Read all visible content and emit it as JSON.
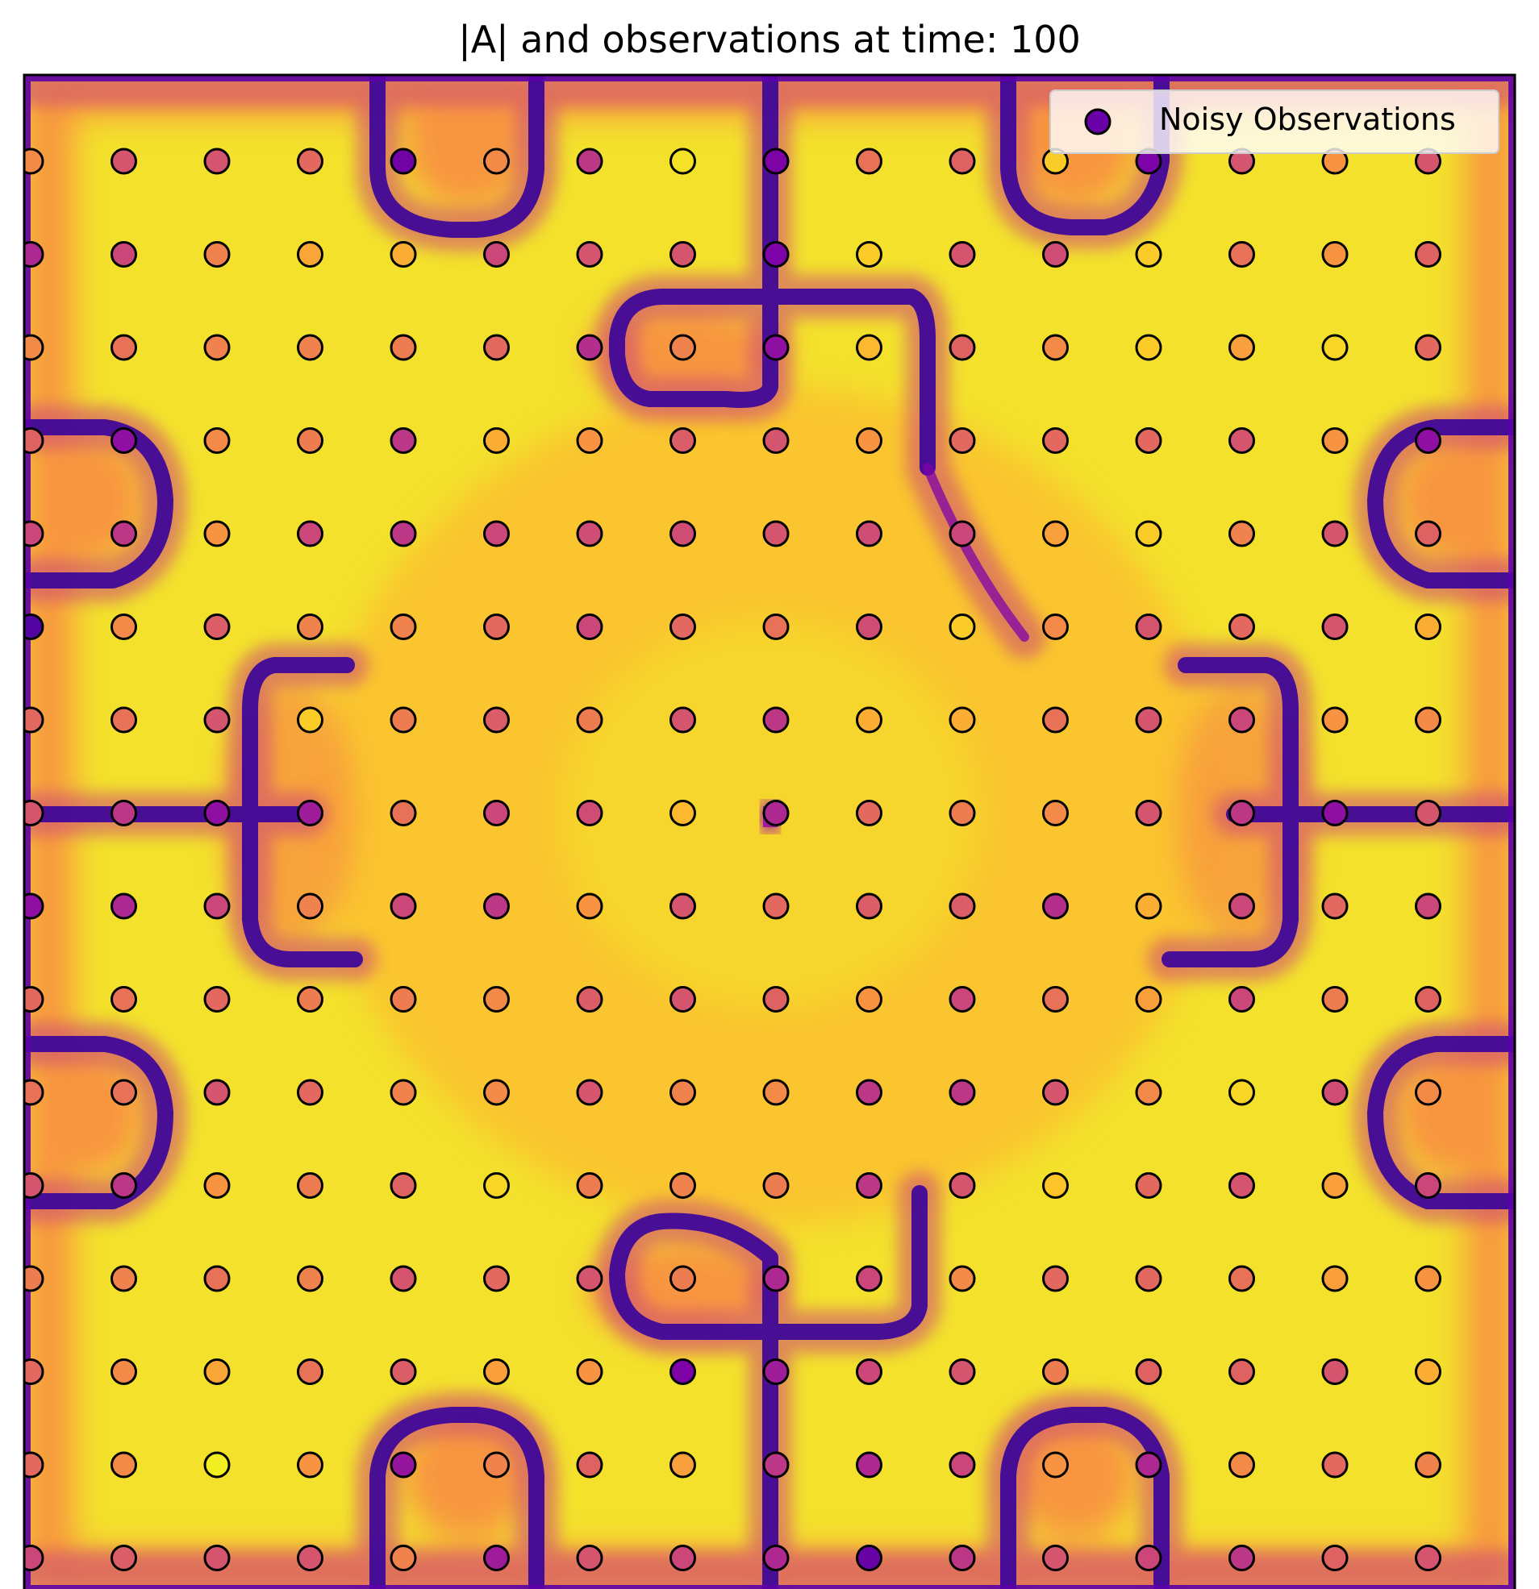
{
  "chart_data": {
    "type": "heatmap",
    "title": "|A| and observations at time: 100",
    "xlabel": "",
    "ylabel": "",
    "colormap": "plasma",
    "axes_ticks": false,
    "grid": false,
    "legend": {
      "placement": "top-right",
      "entries": [
        "Noisy Observations"
      ],
      "marker_color": "#6a00a8"
    },
    "observations": {
      "rows": 16,
      "cols": 16,
      "values": [
        [
          0.72,
          0.55,
          0.55,
          0.62,
          0.22,
          0.72,
          0.45,
          0.95,
          0.25,
          0.65,
          0.6,
          0.9,
          0.25,
          0.55,
          0.75,
          0.55
        ],
        [
          0.4,
          0.5,
          0.7,
          0.8,
          0.82,
          0.5,
          0.55,
          0.55,
          0.25,
          0.9,
          0.55,
          0.52,
          0.9,
          0.65,
          0.75,
          0.6
        ],
        [
          0.72,
          0.65,
          0.7,
          0.7,
          0.68,
          0.62,
          0.42,
          0.7,
          0.3,
          0.85,
          0.6,
          0.72,
          0.9,
          0.78,
          0.92,
          0.62
        ],
        [
          0.6,
          0.3,
          0.72,
          0.68,
          0.45,
          0.82,
          0.75,
          0.58,
          0.55,
          0.75,
          0.62,
          0.62,
          0.62,
          0.55,
          0.75,
          0.3
        ],
        [
          0.5,
          0.45,
          0.75,
          0.5,
          0.45,
          0.5,
          0.52,
          0.52,
          0.55,
          0.52,
          0.5,
          0.78,
          0.9,
          0.7,
          0.55,
          0.6
        ],
        [
          0.15,
          0.72,
          0.58,
          0.7,
          0.7,
          0.62,
          0.5,
          0.62,
          0.65,
          0.52,
          0.9,
          0.72,
          0.55,
          0.62,
          0.55,
          0.82
        ],
        [
          0.62,
          0.65,
          0.55,
          0.9,
          0.68,
          0.58,
          0.68,
          0.55,
          0.45,
          0.82,
          0.82,
          0.65,
          0.55,
          0.5,
          0.75,
          0.72
        ],
        [
          0.55,
          0.45,
          0.3,
          0.35,
          0.65,
          0.5,
          0.52,
          0.85,
          0.4,
          0.62,
          0.68,
          0.72,
          0.55,
          0.45,
          0.3,
          0.55
        ],
        [
          0.3,
          0.4,
          0.5,
          0.7,
          0.5,
          0.45,
          0.75,
          0.55,
          0.62,
          0.58,
          0.58,
          0.42,
          0.82,
          0.5,
          0.62,
          0.5
        ],
        [
          0.62,
          0.65,
          0.62,
          0.68,
          0.68,
          0.72,
          0.58,
          0.55,
          0.6,
          0.75,
          0.5,
          0.65,
          0.78,
          0.5,
          0.68,
          0.6
        ],
        [
          0.65,
          0.65,
          0.55,
          0.62,
          0.7,
          0.72,
          0.55,
          0.7,
          0.72,
          0.45,
          0.45,
          0.55,
          0.72,
          0.92,
          0.52,
          0.72
        ],
        [
          0.55,
          0.45,
          0.75,
          0.68,
          0.6,
          0.92,
          0.68,
          0.7,
          0.68,
          0.45,
          0.55,
          0.88,
          0.62,
          0.55,
          0.78,
          0.5
        ],
        [
          0.68,
          0.7,
          0.65,
          0.7,
          0.55,
          0.62,
          0.55,
          0.68,
          0.4,
          0.5,
          0.72,
          0.62,
          0.62,
          0.65,
          0.78,
          0.75
        ],
        [
          0.62,
          0.72,
          0.8,
          0.65,
          0.58,
          0.78,
          0.75,
          0.25,
          0.35,
          0.5,
          0.55,
          0.68,
          0.6,
          0.6,
          0.55,
          0.82
        ],
        [
          0.62,
          0.72,
          0.98,
          0.75,
          0.32,
          0.7,
          0.6,
          0.78,
          0.45,
          0.4,
          0.5,
          0.75,
          0.4,
          0.72,
          0.62,
          0.7
        ],
        [
          0.5,
          0.58,
          0.55,
          0.55,
          0.7,
          0.35,
          0.55,
          0.5,
          0.4,
          0.2,
          0.45,
          0.55,
          0.5,
          0.45,
          0.6,
          0.55
        ]
      ]
    }
  }
}
